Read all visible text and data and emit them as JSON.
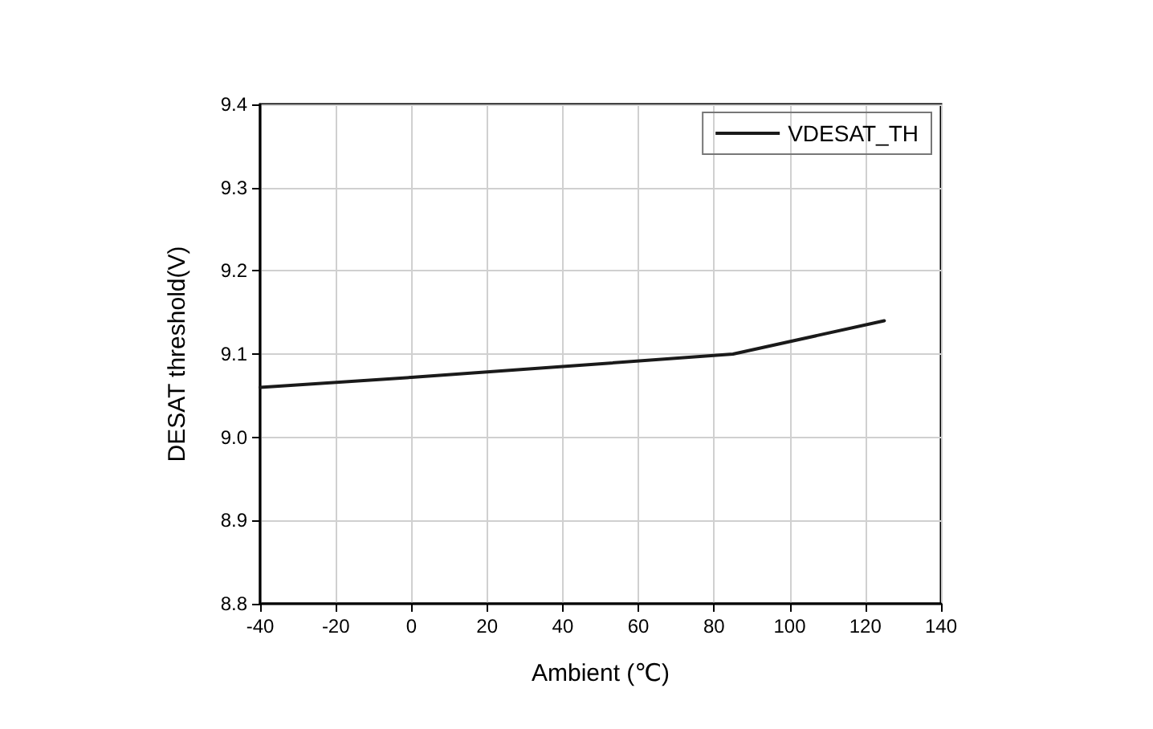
{
  "chart_data": {
    "type": "line",
    "xlabel": "Ambient (℃)",
    "ylabel": "DESAT threshold(V)",
    "x": [
      -40,
      0,
      40,
      85,
      125
    ],
    "series": [
      {
        "name": "VDESAT_TH",
        "color": "#1a1a1a",
        "values": [
          9.06,
          9.072,
          9.085,
          9.1,
          9.14
        ]
      }
    ],
    "xlim": [
      -40,
      140
    ],
    "xticks": [
      -40,
      -20,
      0,
      20,
      40,
      60,
      80,
      100,
      120,
      140
    ],
    "ylim": [
      8.8,
      9.4
    ],
    "yticks": [
      8.8,
      8.9,
      {
        "value": 9,
        "label": "9.0"
      },
      9.1,
      9.2,
      9.3,
      9.4
    ],
    "grid": true,
    "legend": "top right",
    "marker": "none",
    "line_style": "solid"
  }
}
